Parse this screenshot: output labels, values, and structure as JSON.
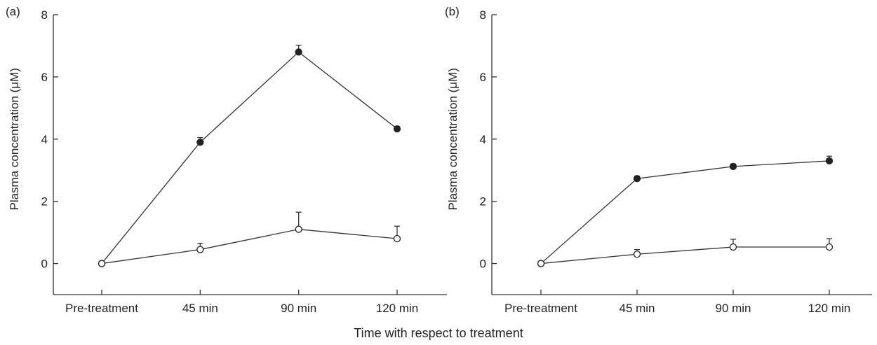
{
  "figure": {
    "xlabel": "Time with respect to treatment"
  },
  "chart_data": [
    {
      "type": "line",
      "panel_label": "(a)",
      "ylabel": "Plasma concentration (μM)",
      "categories": [
        "Pre-treatment",
        "45 min",
        "90 min",
        "120 min"
      ],
      "yticks": [
        "0",
        "2",
        "4",
        "6",
        "8"
      ],
      "ylim": [
        -1,
        8
      ],
      "series": [
        {
          "marker": "filled-circle",
          "values": [
            0,
            3.9,
            6.8,
            4.33
          ],
          "error": [
            0,
            0.15,
            0.22,
            0.08
          ]
        },
        {
          "marker": "open-circle",
          "values": [
            0,
            0.45,
            1.1,
            0.8
          ],
          "error": [
            0,
            0.2,
            0.55,
            0.4
          ]
        }
      ]
    },
    {
      "type": "line",
      "panel_label": "(b)",
      "ylabel": "Plasma concentration (μM)",
      "categories": [
        "Pre-treatment",
        "45 min",
        "90 min",
        "120 min"
      ],
      "yticks": [
        "0",
        "2",
        "4",
        "6",
        "8"
      ],
      "ylim": [
        -1,
        8
      ],
      "series": [
        {
          "marker": "filled-circle",
          "values": [
            0,
            2.73,
            3.12,
            3.3
          ],
          "error": [
            0,
            0.08,
            0.08,
            0.15
          ]
        },
        {
          "marker": "open-circle",
          "values": [
            0,
            0.3,
            0.53,
            0.53
          ],
          "error": [
            0,
            0.15,
            0.25,
            0.27
          ]
        }
      ]
    }
  ]
}
